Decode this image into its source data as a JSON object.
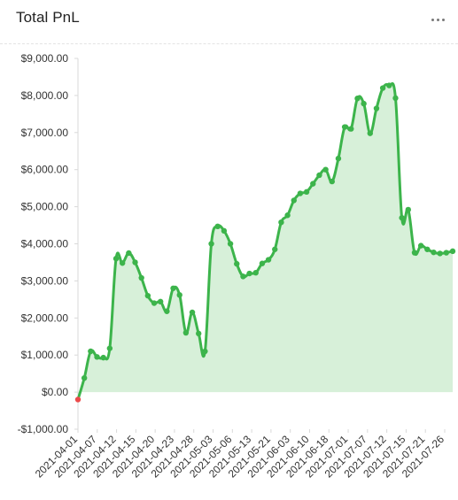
{
  "header": {
    "title": "Total PnL",
    "more_icon": "more-horizontal-icon"
  },
  "colors": {
    "line": "#3cb44b",
    "fill": "#d7f0d9",
    "negative_point": "#ec4b4b",
    "grid": "#e8e8e8",
    "axis": "#999999"
  },
  "chart_data": {
    "type": "area",
    "title": "Total PnL",
    "xlabel": "",
    "ylabel": "",
    "ylim": [
      -1000,
      9000
    ],
    "yticks": [
      9000,
      8000,
      7000,
      6000,
      5000,
      4000,
      3000,
      2000,
      1000,
      0,
      -1000
    ],
    "ytick_labels": [
      "$9,000.00",
      "$8,000.00",
      "$7,000.00",
      "$6,000.00",
      "$5,000.00",
      "$4,000.00",
      "$3,000.00",
      "$2,000.00",
      "$1,000.00",
      "$0.00",
      "-$1,000.00"
    ],
    "xtick_labels": [
      "2021-04-01",
      "2021-04-07",
      "2021-04-12",
      "2021-04-15",
      "2021-04-20",
      "2021-04-23",
      "2021-04-28",
      "2021-05-03",
      "2021-05-06",
      "2021-05-13",
      "2021-05-21",
      "2021-06-03",
      "2021-06-10",
      "2021-06-18",
      "2021-07-01",
      "2021-07-07",
      "2021-07-12",
      "2021-07-15",
      "2021-07-21",
      "2021-07-26"
    ],
    "grid": false,
    "legend": "none",
    "values": [
      -200,
      380,
      1100,
      950,
      930,
      1180,
      3600,
      3480,
      3750,
      3500,
      3080,
      2600,
      2400,
      2440,
      2180,
      2800,
      2620,
      1600,
      2150,
      1580,
      1100,
      4000,
      4470,
      4350,
      4000,
      3460,
      3120,
      3200,
      3220,
      3470,
      3570,
      3850,
      4580,
      4770,
      5170,
      5360,
      5400,
      5620,
      5850,
      6000,
      5680,
      6300,
      7150,
      7100,
      7920,
      7780,
      6980,
      7650,
      8200,
      8270,
      7930,
      4700,
      4920,
      3760,
      3950,
      3850,
      3770,
      3740,
      3760,
      3800
    ]
  }
}
